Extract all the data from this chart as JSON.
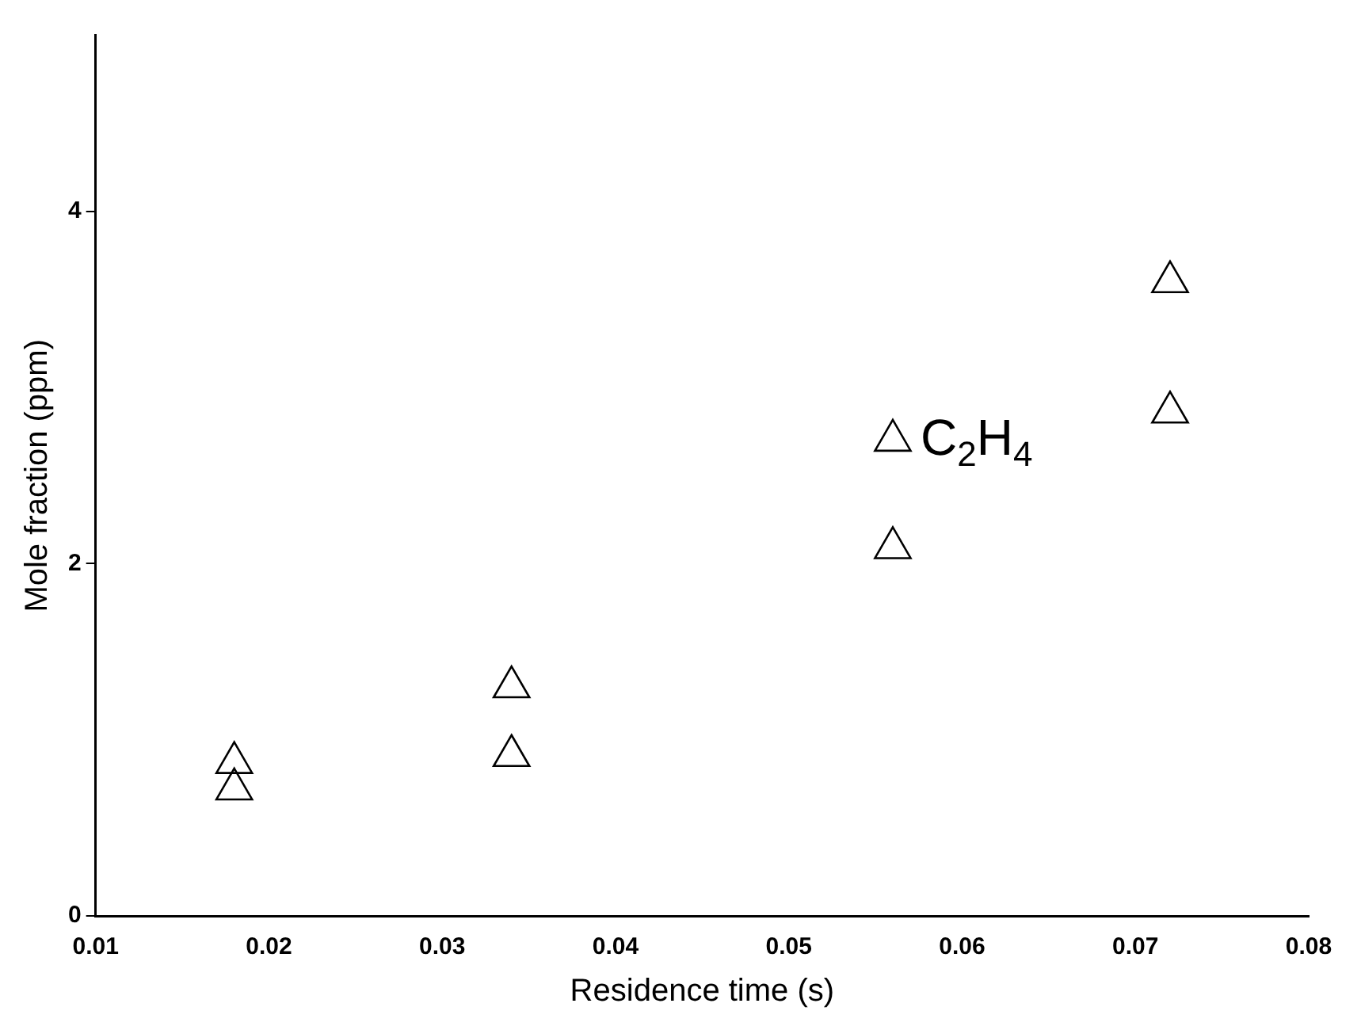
{
  "chart_data": {
    "type": "scatter",
    "xlabel": "Residence time (s)",
    "ylabel": "Mole fraction (ppm)",
    "x": [
      0.018,
      0.018,
      0.034,
      0.034,
      0.056,
      0.056,
      0.072,
      0.072
    ],
    "series": [
      {
        "color": "#000000",
        "values": [
          0.87,
          0.72,
          1.3,
          0.91,
          2.7,
          2.09,
          3.6,
          2.86
        ]
      }
    ],
    "xlim": [
      0.01,
      0.08
    ],
    "xticks": [
      0.01,
      0.02,
      0.03,
      0.04,
      0.05,
      0.06,
      0.07,
      0.08
    ],
    "ylim": [
      0,
      5
    ],
    "yticks": [
      0,
      2,
      4
    ],
    "annotations": [
      "C$_{2}$H$_{4}$"
    ],
    "marker": "triangle",
    "grid": false,
    "legend": false
  }
}
